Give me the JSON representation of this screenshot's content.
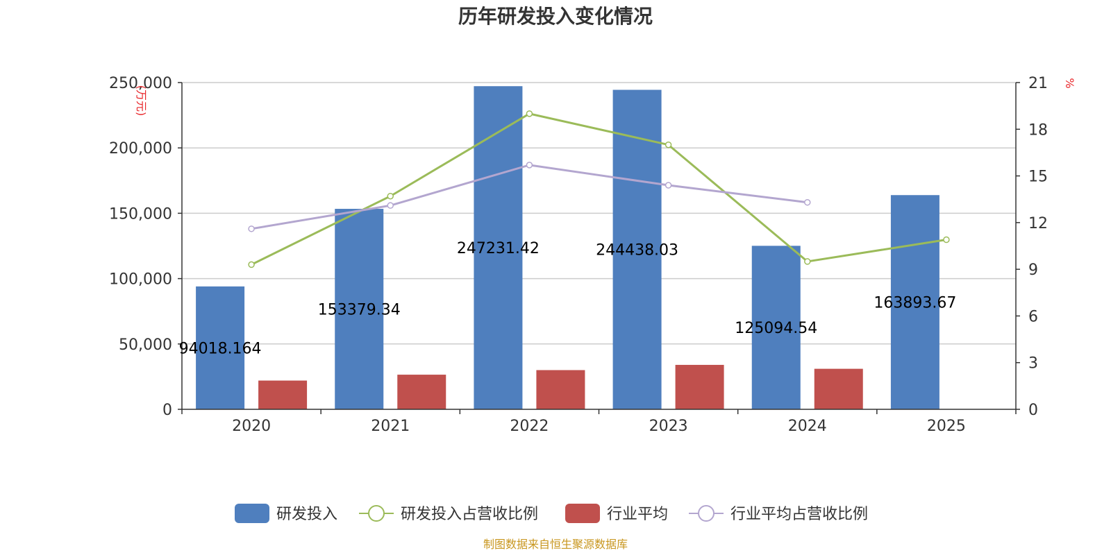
{
  "source_note": "制图数据来自恒生聚源数据库",
  "colors": {
    "rd_bar": "#4f7fbe",
    "industry_bar": "#c0504d",
    "rd_ratio_line": "#9bbb59",
    "industry_ratio_line": "#b3a6cf",
    "unit_text": "#e8262a",
    "source_text": "#c8961e"
  },
  "chart_data": {
    "type": "bar",
    "title": "历年研发投入变化情况",
    "categories": [
      "2020",
      "2021",
      "2022",
      "2023",
      "2024",
      "2025"
    ],
    "y_left": {
      "label": "万元",
      "min": 0,
      "max": 250000,
      "ticks": [
        0,
        50000,
        100000,
        150000,
        200000,
        250000
      ],
      "tick_labels": [
        "0",
        "50,000",
        "100,000",
        "150,000",
        "200,000",
        "250,000"
      ]
    },
    "y_right": {
      "label": "%",
      "min": 0,
      "max": 21,
      "ticks": [
        0,
        3,
        6,
        9,
        12,
        15,
        18,
        21
      ],
      "tick_labels": [
        "0",
        "3",
        "6",
        "9",
        "12",
        "15",
        "18",
        "21"
      ]
    },
    "grid": true,
    "legend_position": "bottom",
    "series": [
      {
        "name": "研发投入",
        "type": "bar",
        "axis": "left",
        "icon": "bar-swatch-icon",
        "values": [
          94018.164,
          153379.34,
          247231.42,
          244438.03,
          125094.54,
          163893.67
        ],
        "data_labels": [
          "94018.164",
          "153379.34",
          "247231.42",
          "244438.03",
          "125094.54",
          "163893.67"
        ]
      },
      {
        "name": "研发投入占营收比例",
        "type": "line",
        "axis": "right",
        "icon": "line-circle-icon",
        "values": [
          9.3,
          13.7,
          19.0,
          17.0,
          9.5,
          10.9
        ]
      },
      {
        "name": "行业平均",
        "type": "bar",
        "axis": "left",
        "icon": "bar-swatch-icon",
        "values": [
          22000,
          26500,
          30000,
          34000,
          31000,
          null
        ]
      },
      {
        "name": "行业平均占营收比例",
        "type": "line",
        "axis": "right",
        "icon": "line-circle-icon",
        "values": [
          11.6,
          13.1,
          15.7,
          14.4,
          13.3,
          null
        ]
      }
    ]
  }
}
